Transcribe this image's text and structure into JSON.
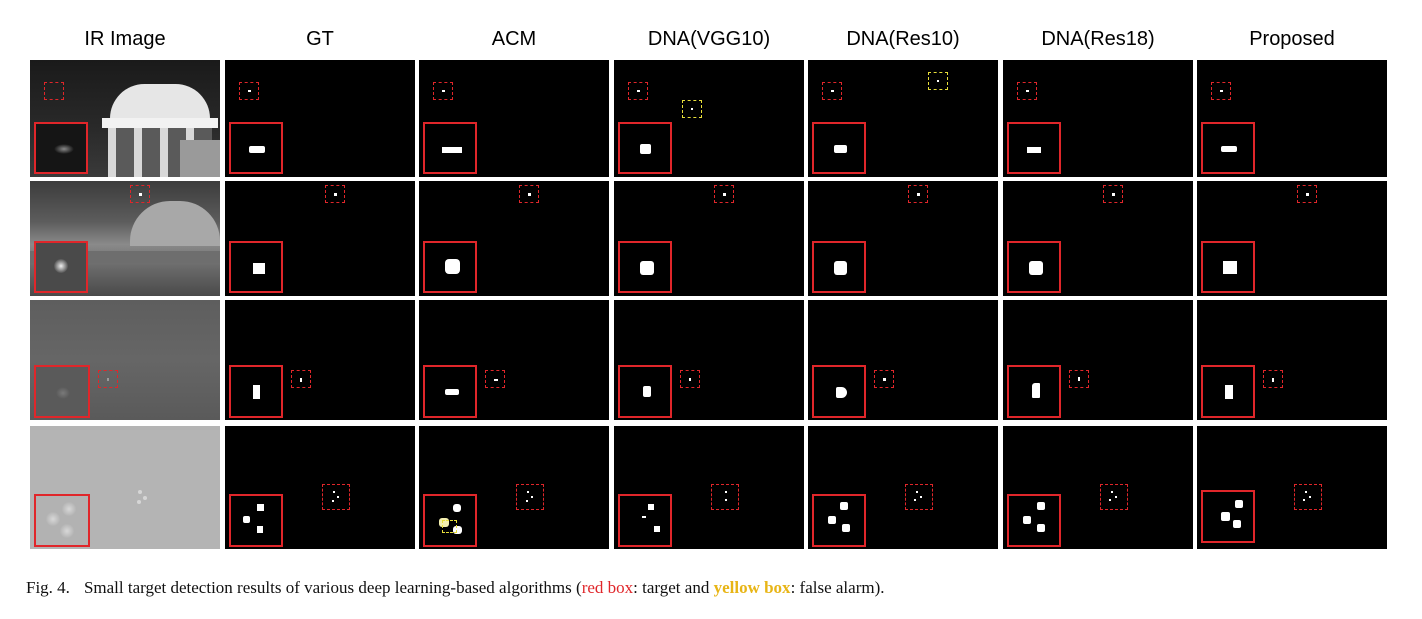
{
  "figure": {
    "columns": [
      "IR Image",
      "GT",
      "ACM",
      "DNA(VGG10)",
      "DNA(Res10)",
      "DNA(Res18)",
      "Proposed"
    ],
    "caption": {
      "label": "Fig. 4.",
      "text_before_red": "Small target detection results of various deep learning-based algorithms (",
      "red_box": "red box",
      "text_middle": ": target and ",
      "yellow_box": "yellow box",
      "text_after": ": false alarm)."
    },
    "colors": {
      "target_box": "#e0262a",
      "false_alarm_box": "#e8df3a",
      "background": "#000000"
    }
  }
}
